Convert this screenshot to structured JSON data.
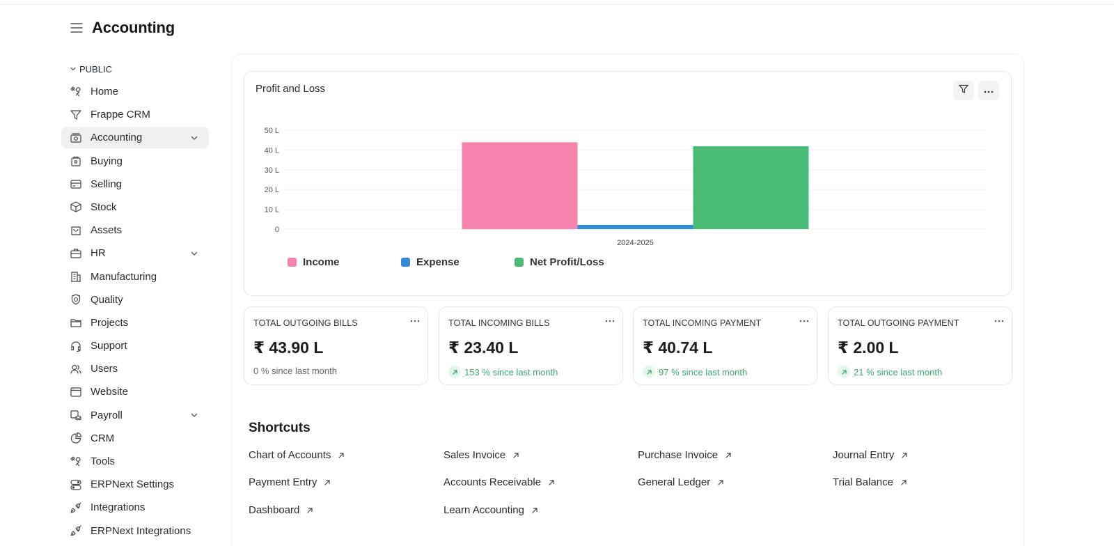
{
  "header": {
    "title": "Accounting",
    "menu_icon": "hamburger-icon"
  },
  "sidebar": {
    "section": "PUBLIC",
    "items": [
      {
        "label": "Home",
        "icon": "tools-icon",
        "active": false,
        "expandable": false
      },
      {
        "label": "Frappe CRM",
        "icon": "funnel-icon",
        "active": false,
        "expandable": false
      },
      {
        "label": "Accounting",
        "icon": "cash-icon",
        "active": true,
        "expandable": true
      },
      {
        "label": "Buying",
        "icon": "shopping-bag-icon",
        "active": false,
        "expandable": false
      },
      {
        "label": "Selling",
        "icon": "card-icon",
        "active": false,
        "expandable": false
      },
      {
        "label": "Stock",
        "icon": "box-icon",
        "active": false,
        "expandable": false
      },
      {
        "label": "Assets",
        "icon": "tote-icon",
        "active": false,
        "expandable": false
      },
      {
        "label": "HR",
        "icon": "briefcase-icon",
        "active": false,
        "expandable": true
      },
      {
        "label": "Manufacturing",
        "icon": "building-icon",
        "active": false,
        "expandable": false
      },
      {
        "label": "Quality",
        "icon": "badge-icon",
        "active": false,
        "expandable": false
      },
      {
        "label": "Projects",
        "icon": "folder-icon",
        "active": false,
        "expandable": false
      },
      {
        "label": "Support",
        "icon": "headset-icon",
        "active": false,
        "expandable": false
      },
      {
        "label": "Users",
        "icon": "users-icon",
        "active": false,
        "expandable": false
      },
      {
        "label": "Website",
        "icon": "browser-icon",
        "active": false,
        "expandable": false
      },
      {
        "label": "Payroll",
        "icon": "payroll-icon",
        "active": false,
        "expandable": true
      },
      {
        "label": "CRM",
        "icon": "pie-icon",
        "active": false,
        "expandable": false
      },
      {
        "label": "Tools",
        "icon": "tools-icon",
        "active": false,
        "expandable": false
      },
      {
        "label": "ERPNext Settings",
        "icon": "toggles-icon",
        "active": false,
        "expandable": false
      },
      {
        "label": "Integrations",
        "icon": "plug-icon",
        "active": false,
        "expandable": false
      },
      {
        "label": "ERPNext Integrations",
        "icon": "plug-icon",
        "active": false,
        "expandable": false
      }
    ]
  },
  "chart_card": {
    "title": "Profit and Loss"
  },
  "chart_data": {
    "type": "bar",
    "title": "Profit and Loss",
    "categories": [
      "2024-2025"
    ],
    "series": [
      {
        "name": "Income",
        "values": [
          43.9
        ],
        "color": "#f683ae"
      },
      {
        "name": "Expense",
        "values": [
          2.0
        ],
        "color": "#318ad8"
      },
      {
        "name": "Net Profit/Loss",
        "values": [
          41.9
        ],
        "color": "#48bb74"
      }
    ],
    "ylim": [
      0,
      50
    ],
    "yticks": [
      0,
      10,
      20,
      30,
      40,
      50
    ],
    "ytick_labels": [
      "0",
      "10 L",
      "20 L",
      "30 L",
      "40 L",
      "50 L"
    ],
    "grid": true,
    "legend": "bottom-left"
  },
  "stats": [
    {
      "title": "TOTAL OUTGOING BILLS",
      "value": "₹ 43.90 L",
      "delta": "0 % since last month",
      "trend": "flat"
    },
    {
      "title": "TOTAL INCOMING BILLS",
      "value": "₹ 23.40 L",
      "delta": "153 % since last month",
      "trend": "up"
    },
    {
      "title": "TOTAL INCOMING PAYMENT",
      "value": "₹ 40.74 L",
      "delta": "97 % since last month",
      "trend": "up"
    },
    {
      "title": "TOTAL OUTGOING PAYMENT",
      "value": "₹ 2.00 L",
      "delta": "21 % since last month",
      "trend": "up"
    }
  ],
  "shortcuts": {
    "title": "Shortcuts",
    "items": [
      "Chart of Accounts",
      "Sales Invoice",
      "Purchase Invoice",
      "Journal Entry",
      "Payment Entry",
      "Accounts Receivable",
      "General Ledger",
      "Trial Balance",
      "Dashboard",
      "Learn Accounting"
    ]
  }
}
